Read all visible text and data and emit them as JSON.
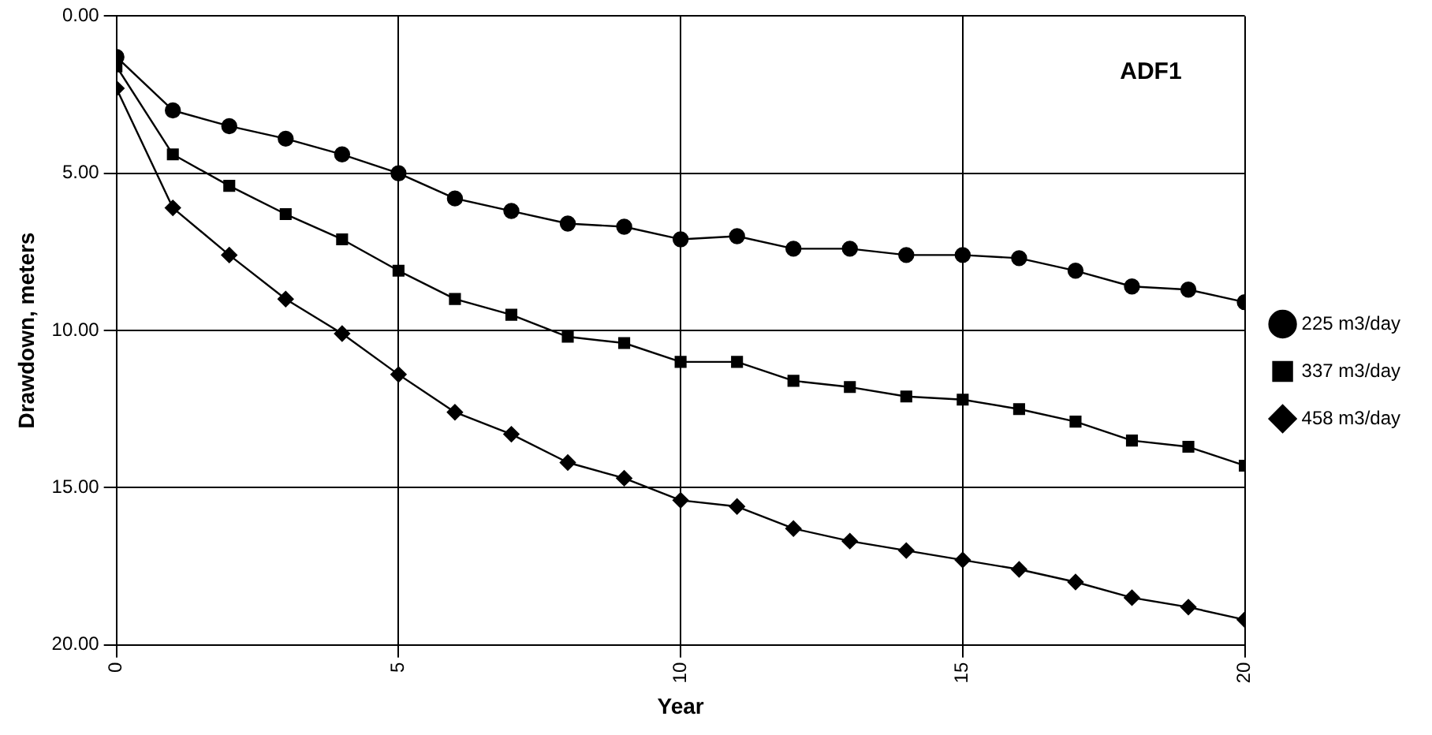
{
  "chart_data": {
    "type": "line",
    "xlabel": "Year",
    "ylabel": "Drawdown, meters",
    "annotations": [
      "ADF1"
    ],
    "x": [
      0,
      1,
      2,
      3,
      4,
      5,
      6,
      7,
      8,
      9,
      10,
      11,
      12,
      13,
      14,
      15,
      16,
      17,
      18,
      19,
      20
    ],
    "series": [
      {
        "name": "225 m3/day",
        "color": "#000000",
        "marker": "circle",
        "values": [
          1.3,
          3.0,
          3.5,
          3.9,
          4.4,
          5.0,
          5.8,
          6.2,
          6.6,
          6.7,
          7.1,
          7.0,
          7.4,
          7.4,
          7.6,
          7.6,
          7.7,
          8.1,
          8.6,
          8.7,
          9.1
        ]
      },
      {
        "name": "337 m3/day",
        "color": "#000000",
        "marker": "square",
        "values": [
          1.6,
          4.4,
          5.4,
          6.3,
          7.1,
          8.1,
          9.0,
          9.5,
          10.2,
          10.4,
          11.0,
          11.0,
          11.6,
          11.8,
          12.1,
          12.2,
          12.5,
          12.9,
          13.5,
          13.7,
          14.3
        ]
      },
      {
        "name": "458 m3/day",
        "color": "#000000",
        "marker": "diamond",
        "values": [
          2.3,
          6.1,
          7.6,
          9.0,
          10.1,
          11.4,
          12.6,
          13.3,
          14.2,
          14.7,
          15.4,
          15.6,
          16.3,
          16.7,
          17.0,
          17.3,
          17.6,
          18.0,
          18.5,
          18.8,
          19.2
        ]
      }
    ],
    "xlim": [
      0,
      20
    ],
    "xticks": [
      0,
      5,
      10,
      15,
      20
    ],
    "ylim": [
      20,
      0
    ],
    "yticks": [
      {
        "value": 0,
        "label": "0.00"
      },
      {
        "value": 5,
        "label": "5.00"
      },
      {
        "value": 10,
        "label": "10.00"
      },
      {
        "value": 15,
        "label": "15.00"
      },
      {
        "value": 20,
        "label": "20.00"
      }
    ],
    "grid": true,
    "legend": "right",
    "line_style": "solid"
  }
}
